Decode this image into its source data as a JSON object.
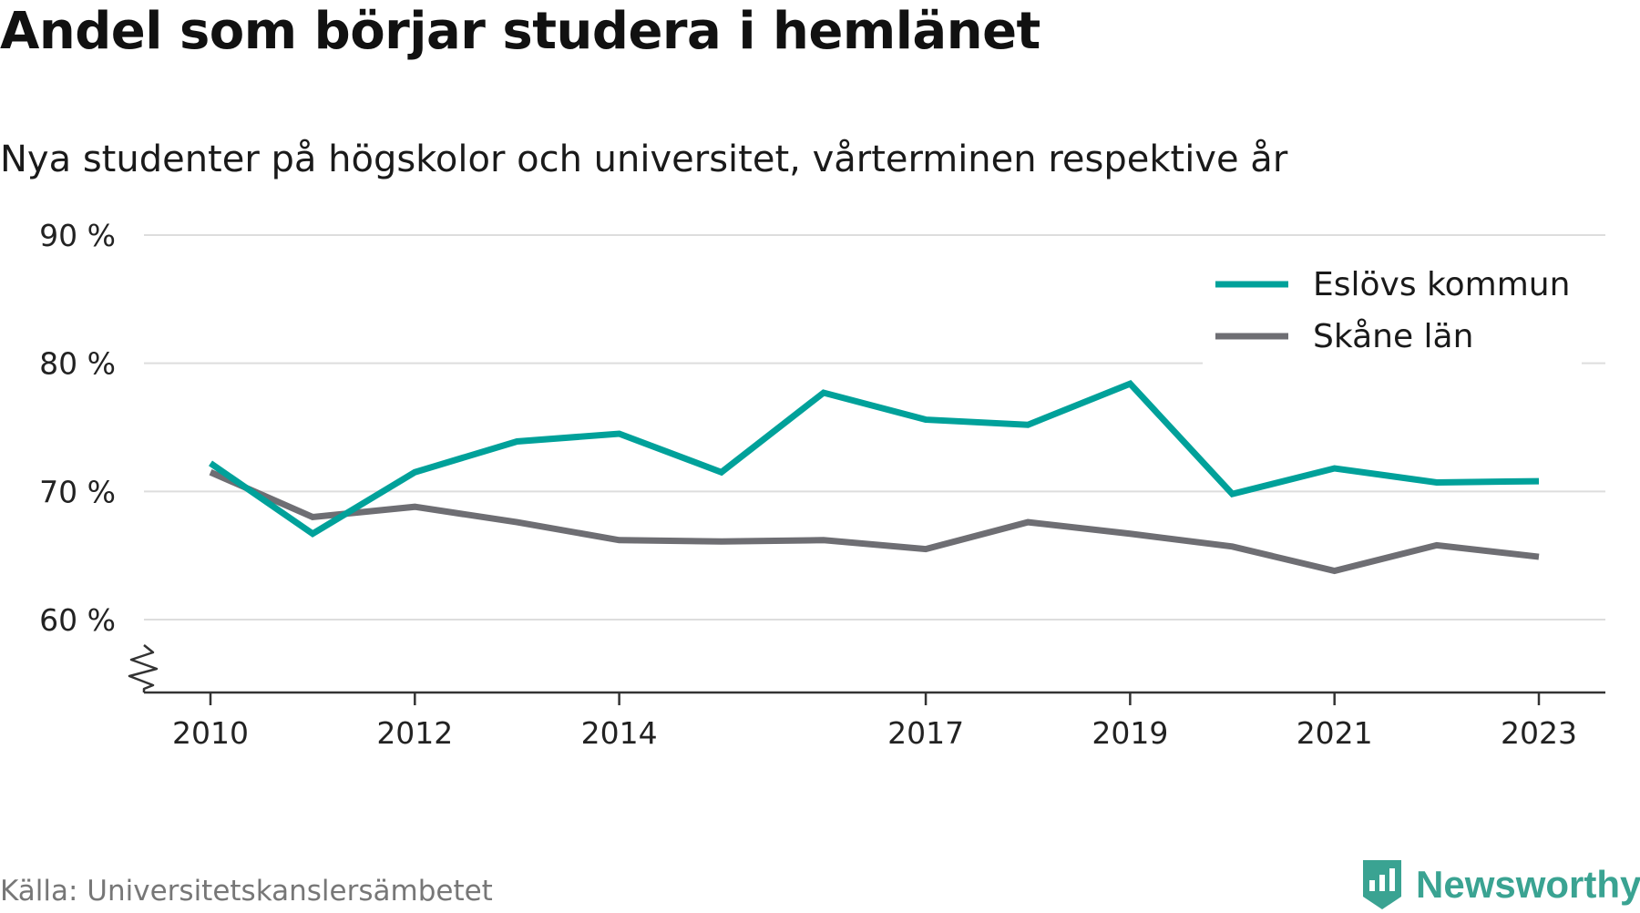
{
  "chart_data": {
    "type": "line",
    "title": "Andel som börjar studera i hemlänet",
    "subtitle": "Nya studenter på högskolor och universitet, vårterminen respektive år",
    "x": [
      2010,
      2011,
      2012,
      2013,
      2014,
      2015,
      2016,
      2017,
      2018,
      2019,
      2020,
      2021,
      2022,
      2023
    ],
    "x_tick_labels": [
      "2010",
      "2012",
      "2014",
      "2017",
      "2019",
      "2021",
      "2023"
    ],
    "y_tick_labels": [
      "60 %",
      "70 %",
      "80 %",
      "90 %"
    ],
    "y_ticks": [
      60,
      70,
      80,
      90
    ],
    "ylim": [
      54.5,
      90
    ],
    "series": [
      {
        "name": "Eslövs kommun",
        "color": "#00a19a",
        "values": [
          72.2,
          66.7,
          71.5,
          73.9,
          74.5,
          71.5,
          77.7,
          75.6,
          75.2,
          78.4,
          69.8,
          71.8,
          70.7,
          70.8
        ]
      },
      {
        "name": "Skåne län",
        "color": "#6e6e73",
        "values": [
          71.5,
          68.0,
          68.8,
          67.6,
          66.2,
          66.1,
          66.2,
          65.5,
          67.6,
          66.7,
          65.7,
          63.8,
          65.8,
          64.9
        ]
      }
    ],
    "grid": true,
    "legend_position": "top-right",
    "axis_break": true
  },
  "source": "Källa: Universitetskanslersämbetet",
  "brand": "Newsworthy",
  "colors": {
    "brand": "#3aa392",
    "grid": "#dddddd",
    "axis": "#333333"
  }
}
